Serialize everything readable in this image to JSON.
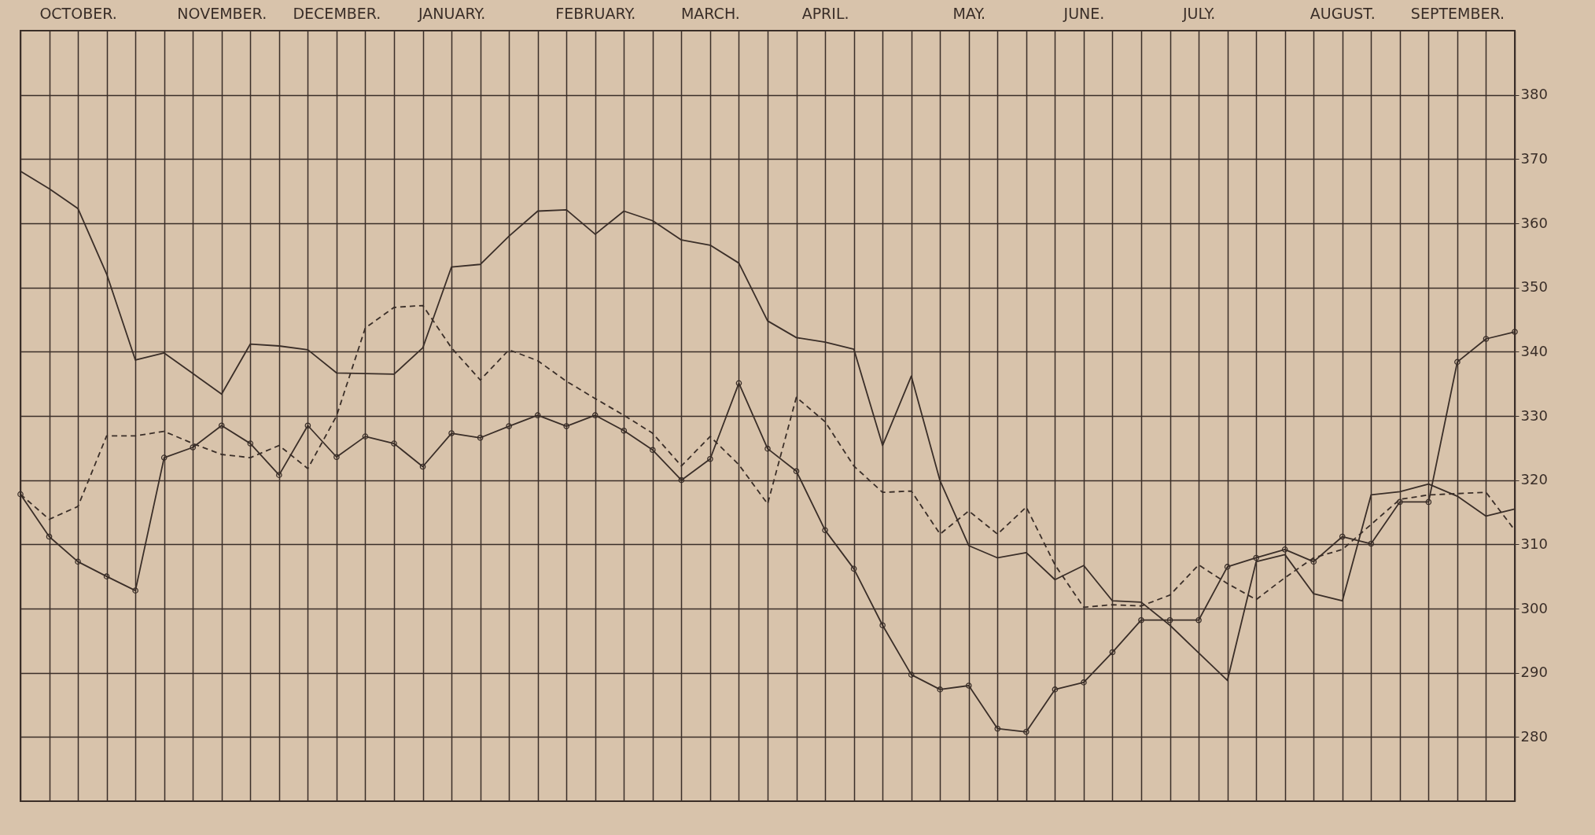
{
  "chart_data": {
    "type": "line",
    "categories": [
      null,
      null,
      "OCTOBER.",
      null,
      null,
      null,
      null,
      "NOVEMBER.",
      null,
      null,
      null,
      "DECEMBER.",
      null,
      null,
      null,
      "JANUARY.",
      null,
      null,
      null,
      null,
      "FEBRUARY.",
      null,
      null,
      null,
      "MARCH.",
      null,
      null,
      null,
      "APRIL.",
      null,
      null,
      null,
      null,
      "MAY.",
      null,
      null,
      null,
      "JUNE.",
      null,
      null,
      null,
      "JULY.",
      null,
      null,
      null,
      null,
      "AUGUST.",
      null,
      null,
      null,
      "SEPTEMBER.",
      null,
      null
    ],
    "ylim": [
      270,
      390
    ],
    "yticks": [
      280,
      290,
      300,
      310,
      320,
      330,
      340,
      350,
      360,
      370,
      380
    ],
    "grid": true,
    "series": [
      {
        "color": "#3a2e28",
        "line_style": "solid",
        "marker": "none",
        "values": [
          368.1,
          365.4,
          362.3,
          352.1,
          338.7,
          339.8,
          336.6,
          333.4,
          341.2,
          340.9,
          340.3,
          336.7,
          336.6,
          336.5,
          340.6,
          353.2,
          353.6,
          358.0,
          361.9,
          362.1,
          358.3,
          361.9,
          360.4,
          357.4,
          356.6,
          353.8,
          344.8,
          342.2,
          341.5,
          340.4,
          325.4,
          336.2,
          319.9,
          309.8,
          307.9,
          308.7,
          304.5,
          306.7,
          301.2,
          301.0,
          297.4,
          293.1,
          288.8,
          307.3,
          308.4,
          302.3,
          301.2,
          317.7,
          318.2,
          319.4,
          317.5,
          314.4,
          315.5
        ]
      },
      {
        "color": "#3a2e28",
        "line_style": "dashed",
        "marker": "none",
        "values": [
          317.8,
          313.9,
          315.9,
          326.9,
          326.9,
          327.6,
          325.7,
          324.0,
          323.5,
          325.4,
          321.8,
          330.0,
          343.7,
          346.9,
          347.2,
          340.6,
          335.6,
          340.3,
          338.6,
          335.4,
          332.7,
          330.1,
          327.3,
          322.2,
          326.8,
          322.4,
          316.3,
          332.9,
          329.1,
          322.2,
          318.1,
          318.3,
          311.6,
          315.2,
          311.6,
          315.8,
          306.8,
          300.2,
          300.6,
          300.4,
          302.1,
          306.8,
          303.9,
          301.4,
          304.8,
          307.9,
          309.2,
          313.1,
          317.0,
          317.7,
          317.9,
          318.1,
          312.2
        ]
      },
      {
        "color": "#3a2e28",
        "line_style": "solid",
        "marker": "circle",
        "values": [
          317.8,
          311.2,
          307.3,
          305.0,
          302.8,
          323.5,
          325.1,
          328.5,
          325.7,
          320.8,
          328.5,
          323.6,
          326.8,
          325.7,
          322.1,
          327.3,
          326.6,
          328.4,
          330.1,
          328.4,
          330.1,
          327.7,
          324.7,
          320.0,
          323.3,
          335.1,
          324.9,
          321.4,
          312.2,
          306.2,
          297.4,
          289.7,
          287.4,
          288.0,
          281.3,
          280.8,
          287.4,
          288.5,
          293.2,
          298.2,
          298.2,
          298.2,
          306.5,
          307.9,
          309.2,
          307.3,
          311.2,
          310.1,
          316.6,
          316.6,
          338.4,
          342.0,
          343.1
        ]
      }
    ]
  }
}
